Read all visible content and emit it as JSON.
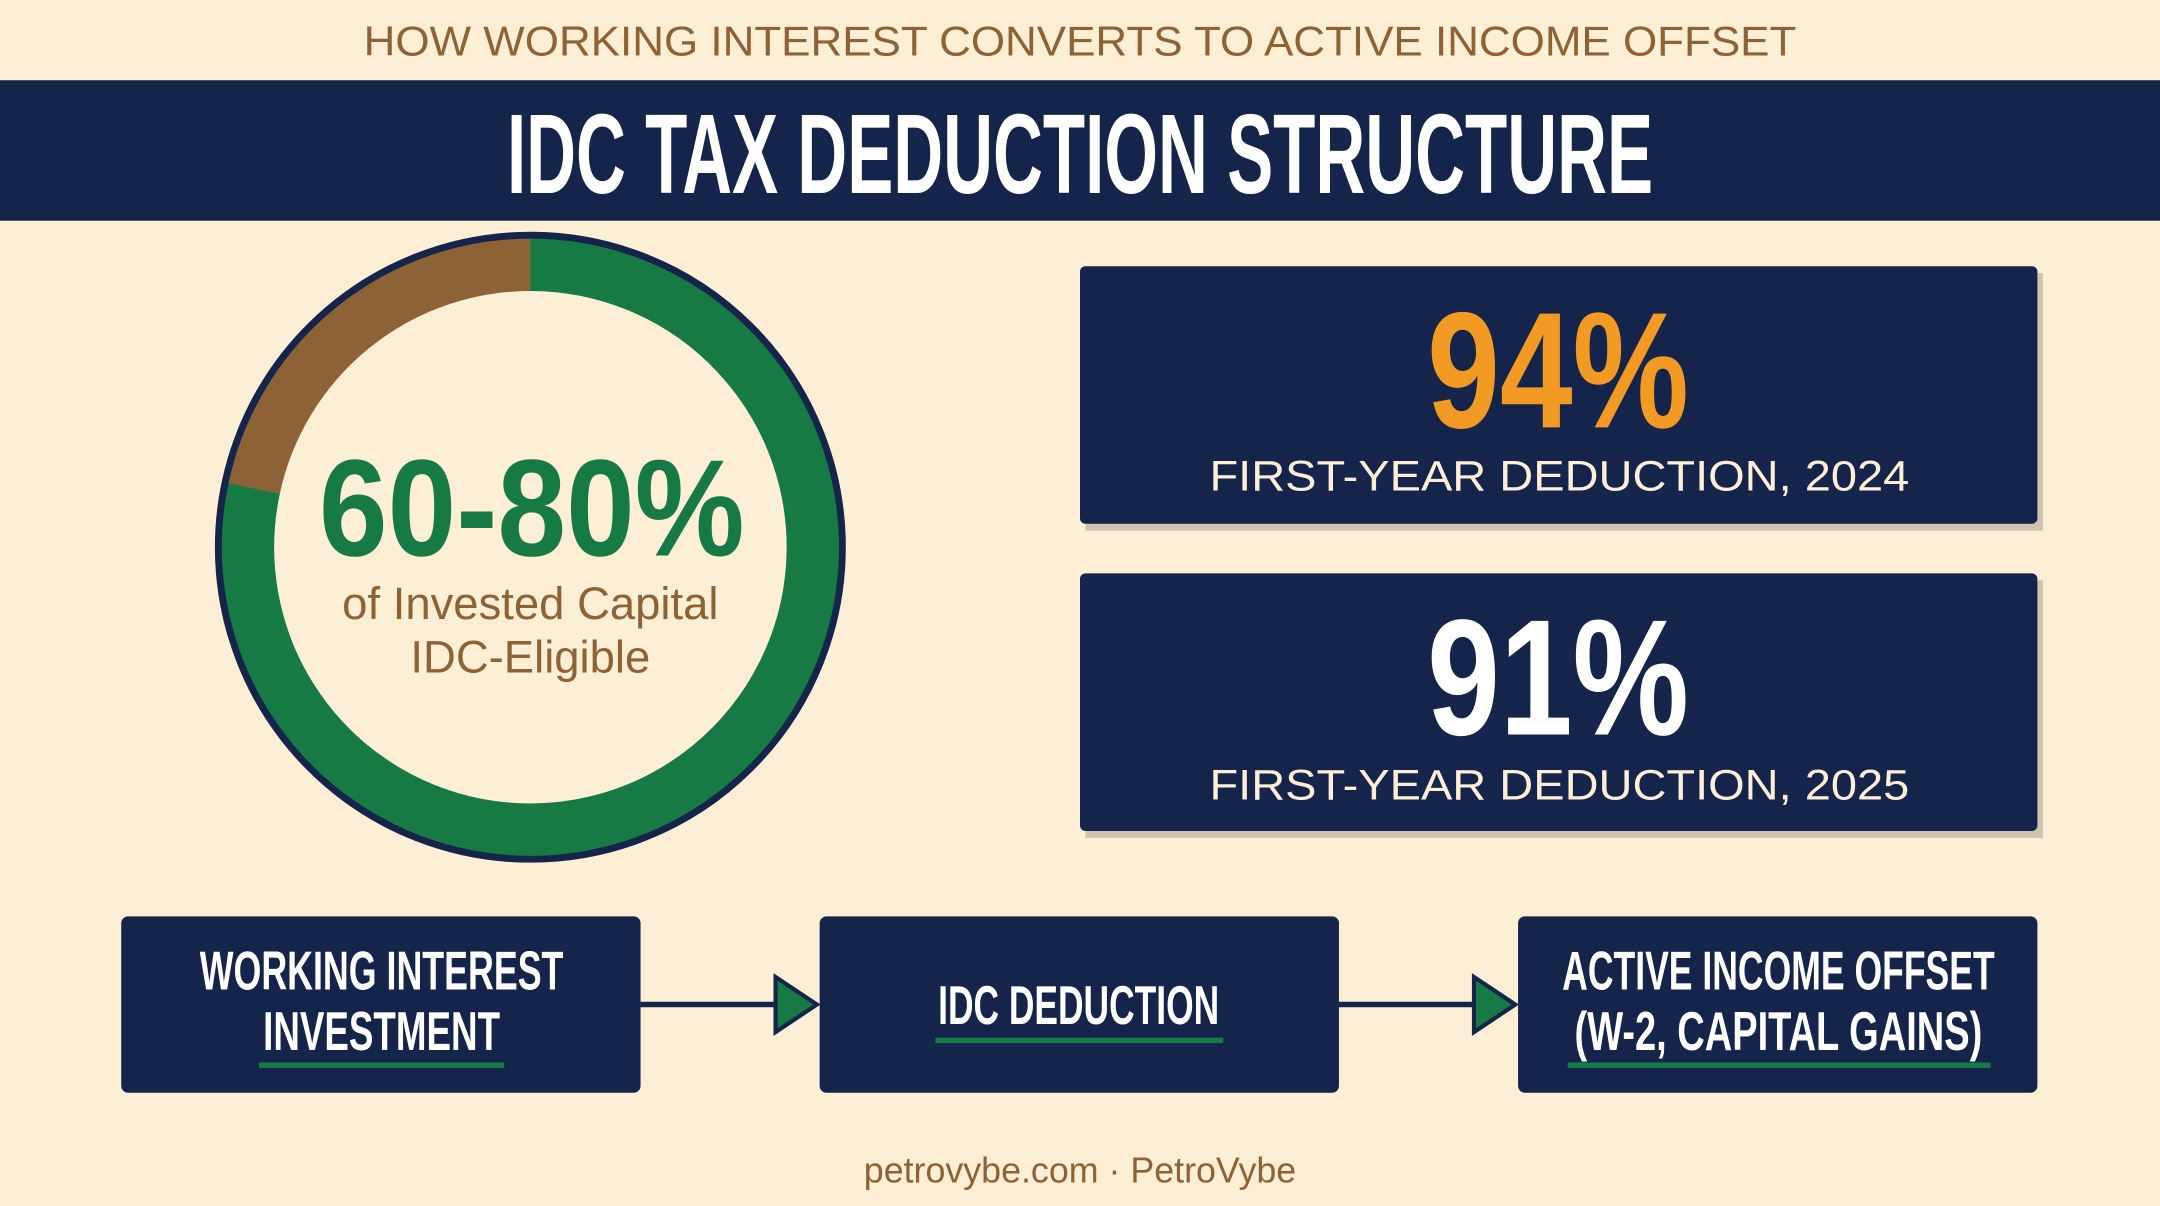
{
  "header": {
    "subtitle": "HOW WORKING INTEREST CONVERTS TO ACTIVE INCOME OFFSET",
    "title": "IDC TAX DEDUCTION STRUCTURE"
  },
  "ring": {
    "value": "60-80%",
    "caption": [
      "of Invested Capital",
      "IDC-Eligible"
    ]
  },
  "stats": [
    {
      "value": "94%",
      "label": "FIRST-YEAR DEDUCTION, 2024"
    },
    {
      "value": "91%",
      "label": "FIRST-YEAR DEDUCTION, 2025"
    }
  ],
  "flow": [
    {
      "lines": [
        "WORKING INTEREST",
        "INVESTMENT"
      ]
    },
    {
      "lines": [
        "IDC DEDUCTION"
      ]
    },
    {
      "lines": [
        "ACTIVE INCOME OFFSET",
        "(W-2, CAPITAL GAINS)"
      ]
    }
  ],
  "footer": "petrovybe.com · PetroVybe"
}
